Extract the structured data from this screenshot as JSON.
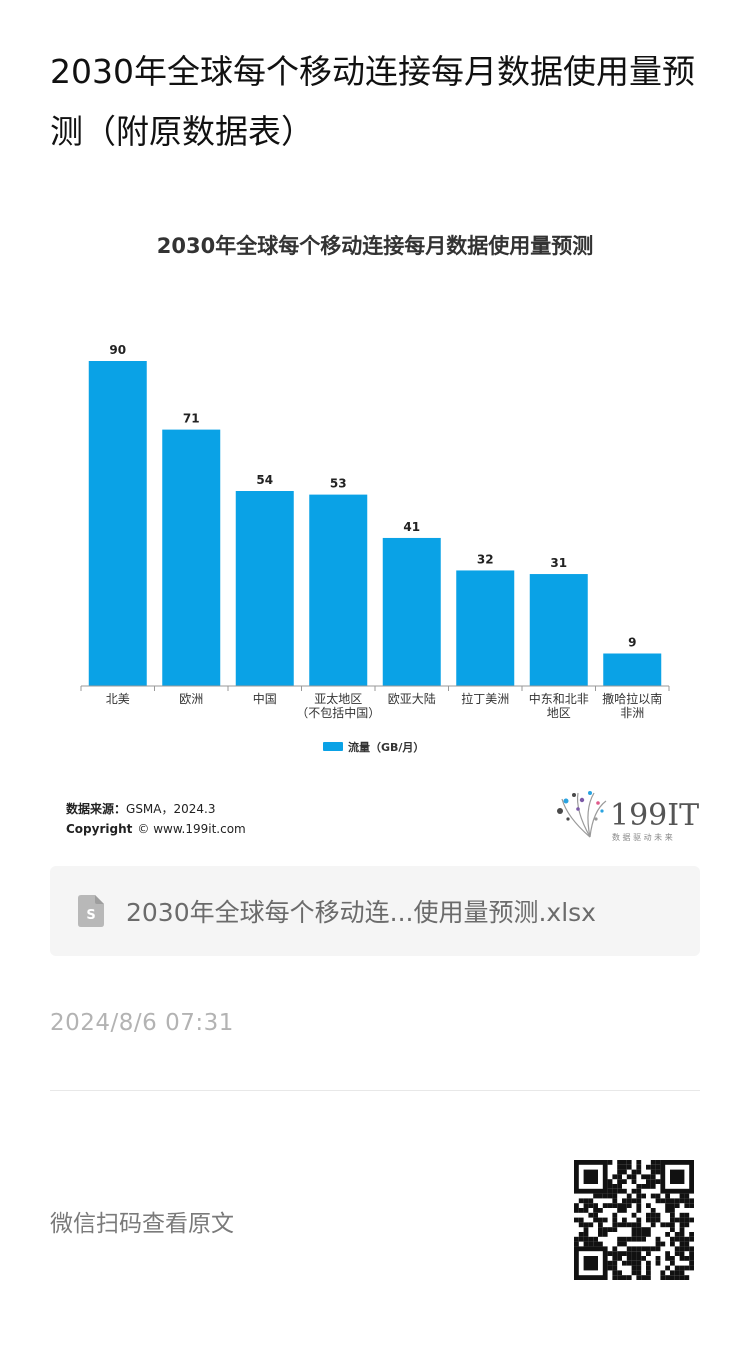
{
  "article": {
    "title": "2030年全球每个移动连接每月数据使用量预测（附原数据表）"
  },
  "chart_data": {
    "type": "bar",
    "title": "2030年全球每个移动连接每月数据使用量预测",
    "categories": [
      [
        "北美"
      ],
      [
        "欧洲"
      ],
      [
        "中国"
      ],
      [
        "亚太地区",
        "（不包括中国）"
      ],
      [
        "欧亚大陆"
      ],
      [
        "拉丁美洲"
      ],
      [
        "中东和北非",
        "地区"
      ],
      [
        "撒哈拉以南",
        "非洲"
      ]
    ],
    "series": [
      {
        "name": "流量（GB/月）",
        "values": [
          90,
          71,
          54,
          53,
          41,
          32,
          31,
          9
        ],
        "color": "#0aa2e6"
      }
    ],
    "ylim": [
      0,
      90
    ],
    "grid": false,
    "legend_position": "bottom",
    "source_label": "数据来源：",
    "source_text": "GSMA，2024.3",
    "copyright_label": "Copyright",
    "copyright_text": "© www.199it.com",
    "logo_text": "199IT",
    "logo_tagline": "数 据 驱 动 未 来"
  },
  "attachment": {
    "file_name": "2030年全球每个移动连...使用量预测.xlsx",
    "icon": "spreadsheet-file-icon"
  },
  "footer": {
    "timestamp": "2024/8/6 07:31",
    "qr_hint": "微信扫码查看原文",
    "qr_icon": "qr-code-icon"
  }
}
